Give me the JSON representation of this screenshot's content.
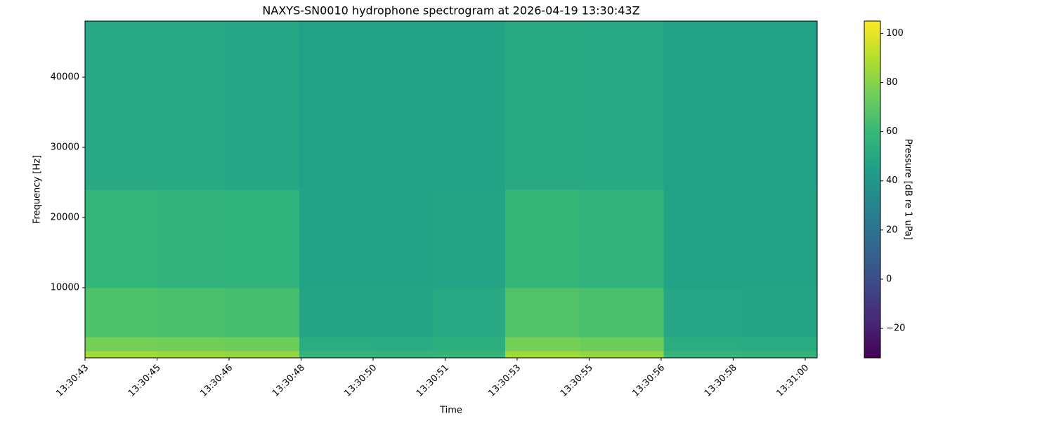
{
  "chart_data": {
    "type": "heatmap",
    "title": "NAXYS-SN0010 hydrophone spectrogram at 2026-04-19 13:30:43Z",
    "xlabel": "Time",
    "ylabel": "Frequency [Hz]",
    "colorbar_label": "Pressure [dB re 1 uPa]",
    "colormap": "viridis",
    "xlim": [
      0,
      17.08
    ],
    "xticks": [
      {
        "value": 0,
        "label": "13:30:43"
      },
      {
        "value": 1.68,
        "label": "13:30:45"
      },
      {
        "value": 3.36,
        "label": "13:30:46"
      },
      {
        "value": 5.04,
        "label": "13:30:48"
      },
      {
        "value": 6.72,
        "label": "13:30:50"
      },
      {
        "value": 8.4,
        "label": "13:30:51"
      },
      {
        "value": 10.08,
        "label": "13:30:53"
      },
      {
        "value": 11.76,
        "label": "13:30:55"
      },
      {
        "value": 13.44,
        "label": "13:30:56"
      },
      {
        "value": 15.12,
        "label": "13:30:58"
      },
      {
        "value": 16.8,
        "label": "13:31:00"
      }
    ],
    "ylim": [
      0,
      48000
    ],
    "yticks": [
      10000,
      20000,
      30000,
      40000
    ],
    "clim": [
      -32,
      105
    ],
    "cticks": [
      {
        "value": -20,
        "label": "−20"
      },
      0,
      20,
      40,
      60,
      80,
      100
    ],
    "x_edges": [
      0,
      1.7,
      3.25,
      5.0,
      6.7,
      8.1,
      9.8,
      11.55,
      13.5,
      15.3,
      17.08
    ],
    "y_edges": [
      0,
      1000,
      3000,
      10000,
      24000,
      48000
    ],
    "z": [
      [
        86,
        84,
        83,
        58,
        57,
        58,
        85,
        83,
        58,
        57
      ],
      [
        76,
        75,
        74,
        53,
        52,
        54,
        76,
        74,
        53,
        52
      ],
      [
        66,
        65,
        64,
        48,
        48,
        50,
        67,
        65,
        49,
        48
      ],
      [
        58,
        57,
        56,
        47,
        47,
        48,
        59,
        57,
        47,
        47
      ],
      [
        50,
        50,
        49,
        46,
        46,
        47,
        51,
        50,
        46,
        46
      ]
    ]
  }
}
